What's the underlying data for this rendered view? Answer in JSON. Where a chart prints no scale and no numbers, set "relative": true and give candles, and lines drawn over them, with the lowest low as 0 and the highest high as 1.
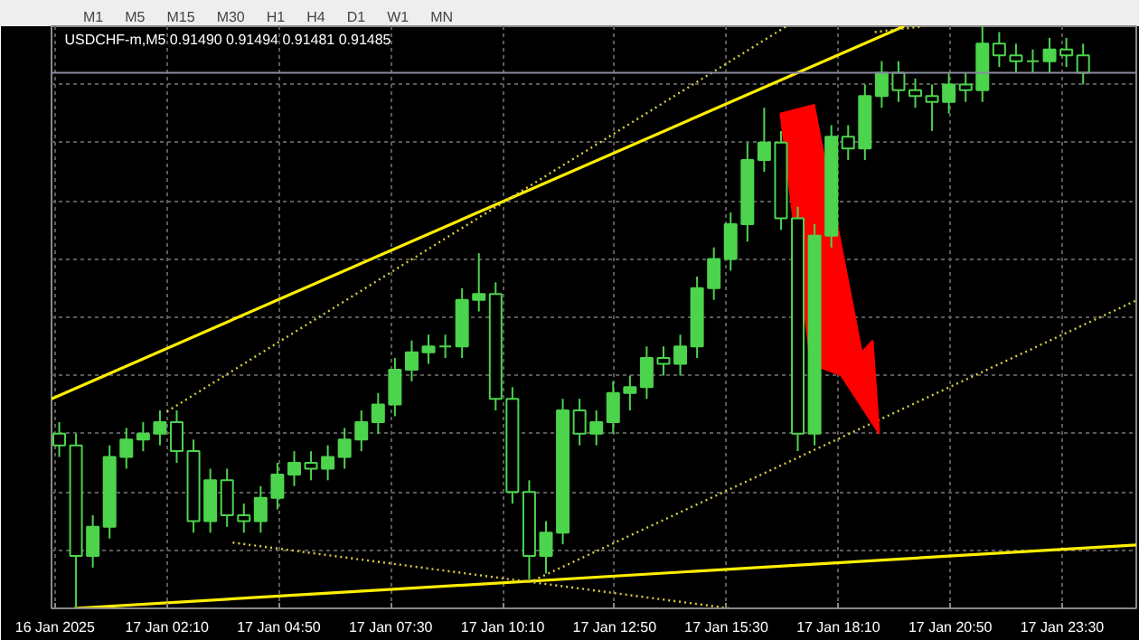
{
  "chart_data": {
    "type": "candlestick",
    "title": "USDCHF-m,M5  0.91490 0.91494 0.91481 0.91485",
    "annotations": [
      "M1",
      "M5",
      "M15",
      "M30",
      "H1",
      "H4",
      "D1",
      "W1",
      "MN"
    ],
    "relative": true,
    "color": "#4cd44c",
    "grid": true,
    "x": [
      "2025-01-16T23:36",
      "2025-01-17T00:00",
      "2025-01-17T00:24",
      "2025-01-17T00:48",
      "2025-01-17T01:12",
      "2025-01-17T01:36",
      "2025-01-17T02:00",
      "2025-01-17T02:24",
      "2025-01-17T02:48",
      "2025-01-17T03:12",
      "2025-01-17T03:36",
      "2025-01-17T04:00",
      "2025-01-17T04:24",
      "2025-01-17T04:48",
      "2025-01-17T05:12",
      "2025-01-17T05:36",
      "2025-01-17T06:00",
      "2025-01-17T06:24",
      "2025-01-17T06:48",
      "2025-01-17T07:12",
      "2025-01-17T07:36",
      "2025-01-17T08:00",
      "2025-01-17T08:24",
      "2025-01-17T08:48",
      "2025-01-17T09:12",
      "2025-01-17T09:36",
      "2025-01-17T10:00",
      "2025-01-17T10:24",
      "2025-01-17T10:48",
      "2025-01-17T11:12",
      "2025-01-17T11:36",
      "2025-01-17T12:00",
      "2025-01-17T12:24",
      "2025-01-17T12:48",
      "2025-01-17T13:12",
      "2025-01-17T13:36",
      "2025-01-17T14:00",
      "2025-01-17T14:24",
      "2025-01-17T14:48",
      "2025-01-17T15:12",
      "2025-01-17T15:36",
      "2025-01-17T16:00",
      "2025-01-17T16:24",
      "2025-01-17T16:48",
      "2025-01-17T17:12",
      "2025-01-17T17:36",
      "2025-01-17T18:00",
      "2025-01-17T18:24",
      "2025-01-17T18:48",
      "2025-01-17T19:12",
      "2025-01-17T19:36",
      "2025-01-17T20:00",
      "2025-01-17T20:24",
      "2025-01-17T20:48",
      "2025-01-17T21:12",
      "2025-01-17T21:36",
      "2025-01-17T22:00",
      "2025-01-17T22:24",
      "2025-01-17T22:48",
      "2025-01-17T23:12",
      "2025-01-17T23:36",
      "2025-01-18T00:00"
    ],
    "ohlc": [
      [
        0.3,
        0.32,
        0.26,
        0.28
      ],
      [
        0.28,
        0.3,
        0,
        0.09
      ],
      [
        0.09,
        0.16,
        0.07,
        0.14
      ],
      [
        0.14,
        0.28,
        0.12,
        0.26
      ],
      [
        0.26,
        0.31,
        0.24,
        0.29
      ],
      [
        0.29,
        0.32,
        0.27,
        0.3
      ],
      [
        0.3,
        0.34,
        0.28,
        0.32
      ],
      [
        0.32,
        0.34,
        0.25,
        0.27
      ],
      [
        0.27,
        0.29,
        0.13,
        0.15
      ],
      [
        0.15,
        0.24,
        0.13,
        0.22
      ],
      [
        0.22,
        0.24,
        0.14,
        0.16
      ],
      [
        0.16,
        0.18,
        0.13,
        0.15
      ],
      [
        0.15,
        0.21,
        0.13,
        0.19
      ],
      [
        0.19,
        0.25,
        0.17,
        0.23
      ],
      [
        0.23,
        0.27,
        0.21,
        0.25
      ],
      [
        0.25,
        0.27,
        0.22,
        0.24
      ],
      [
        0.24,
        0.28,
        0.22,
        0.26
      ],
      [
        0.26,
        0.31,
        0.24,
        0.29
      ],
      [
        0.29,
        0.34,
        0.27,
        0.32
      ],
      [
        0.32,
        0.37,
        0.3,
        0.35
      ],
      [
        0.35,
        0.43,
        0.33,
        0.41
      ],
      [
        0.41,
        0.46,
        0.39,
        0.44
      ],
      [
        0.44,
        0.47,
        0.42,
        0.45
      ],
      [
        0.45,
        0.47,
        0.43,
        0.45
      ],
      [
        0.45,
        0.55,
        0.43,
        0.53
      ],
      [
        0.53,
        0.61,
        0.51,
        0.54
      ],
      [
        0.54,
        0.56,
        0.34,
        0.36
      ],
      [
        0.36,
        0.38,
        0.18,
        0.2
      ],
      [
        0.2,
        0.22,
        0.05,
        0.09
      ],
      [
        0.09,
        0.15,
        0.06,
        0.13
      ],
      [
        0.13,
        0.36,
        0.11,
        0.34
      ],
      [
        0.34,
        0.36,
        0.28,
        0.3
      ],
      [
        0.3,
        0.34,
        0.28,
        0.32
      ],
      [
        0.32,
        0.39,
        0.3,
        0.37
      ],
      [
        0.37,
        0.4,
        0.34,
        0.38
      ],
      [
        0.38,
        0.45,
        0.36,
        0.43
      ],
      [
        0.43,
        0.45,
        0.4,
        0.42
      ],
      [
        0.42,
        0.47,
        0.4,
        0.45
      ],
      [
        0.45,
        0.57,
        0.43,
        0.55
      ],
      [
        0.55,
        0.62,
        0.53,
        0.6
      ],
      [
        0.6,
        0.68,
        0.58,
        0.66
      ],
      [
        0.66,
        0.8,
        0.63,
        0.77
      ],
      [
        0.77,
        0.86,
        0.75,
        0.8
      ],
      [
        0.8,
        0.82,
        0.65,
        0.67
      ],
      [
        0.67,
        0.69,
        0.27,
        0.3
      ],
      [
        0.3,
        0.66,
        0.28,
        0.64
      ],
      [
        0.64,
        0.83,
        0.62,
        0.81
      ],
      [
        0.81,
        0.83,
        0.77,
        0.79
      ],
      [
        0.79,
        0.9,
        0.77,
        0.88
      ],
      [
        0.88,
        0.94,
        0.86,
        0.92
      ],
      [
        0.92,
        0.94,
        0.87,
        0.89
      ],
      [
        0.89,
        0.91,
        0.86,
        0.88
      ],
      [
        0.88,
        0.9,
        0.82,
        0.87
      ],
      [
        0.87,
        0.92,
        0.85,
        0.9
      ],
      [
        0.9,
        0.92,
        0.87,
        0.89
      ],
      [
        0.89,
        1,
        0.87,
        0.97
      ],
      [
        0.97,
        0.99,
        0.93,
        0.95
      ],
      [
        0.95,
        0.97,
        0.92,
        0.94
      ],
      [
        0.94,
        0.96,
        0.92,
        0.94
      ],
      [
        0.94,
        0.98,
        0.92,
        0.96
      ],
      [
        0.96,
        0.98,
        0.93,
        0.95
      ],
      [
        0.95,
        0.97,
        0.9,
        0.92
      ]
    ],
    "series": [
      {
        "type": "line",
        "color": "#ffee00",
        "line_style": "solid",
        "x": [
          "2025-01-16T23:25",
          "2025-01-17T19:44"
        ],
        "values": [
          0.36,
          1
        ]
      },
      {
        "type": "line",
        "color": "#ffee00",
        "line_style": "solid",
        "x": [
          "2025-01-16T23:57",
          "2025-01-18T01:16"
        ],
        "values": [
          0,
          0.109
        ]
      },
      {
        "type": "line",
        "color": "#d8cc40",
        "line_style": "dotted",
        "x": [
          "2025-01-17T02:10",
          "2025-01-17T16:56"
        ],
        "values": [
          0.338,
          1
        ]
      },
      {
        "type": "line",
        "color": "#d8cc40",
        "line_style": "dotted",
        "x": [
          "2025-01-17T19:02",
          "2025-01-17T20:12"
        ],
        "values": [
          0.99,
          1
        ]
      },
      {
        "type": "line",
        "color": "#d8cc40",
        "line_style": "dotted",
        "x": [
          "2025-01-17T10:54",
          "2025-01-18T01:16"
        ],
        "values": [
          0.048,
          0.529
        ]
      },
      {
        "type": "line",
        "color": "#d8cc40",
        "line_style": "dotted",
        "x": [
          "2025-01-17T03:44",
          "2025-01-17T15:35"
        ],
        "values": [
          0.113,
          0
        ]
      }
    ],
    "ref_lines": [
      {
        "axis": "y",
        "value": 0.92,
        "color": "#8a8aa0"
      }
    ],
    "xlim": [
      "2025-01-16T23:25",
      "2025-01-18T01:16"
    ],
    "xticks": [
      {
        "value": "2025-01-16T23:30",
        "label": "16 Jan 2025"
      },
      {
        "value": "2025-01-17T02:10",
        "label": "17 Jan 02:10"
      },
      {
        "value": "2025-01-17T04:50",
        "label": "17 Jan 04:50"
      },
      {
        "value": "2025-01-17T07:30",
        "label": "17 Jan 07:30"
      },
      {
        "value": "2025-01-17T10:10",
        "label": "17 Jan 10:10"
      },
      {
        "value": "2025-01-17T12:50",
        "label": "17 Jan 12:50"
      },
      {
        "value": "2025-01-17T15:30",
        "label": "17 Jan 15:30"
      },
      {
        "value": "2025-01-17T18:10",
        "label": "17 Jan 18:10"
      },
      {
        "value": "2025-01-17T20:50",
        "label": "17 Jan 20:50"
      },
      {
        "value": "2025-01-17T23:30",
        "label": "17 Jan 23:30"
      }
    ]
  }
}
